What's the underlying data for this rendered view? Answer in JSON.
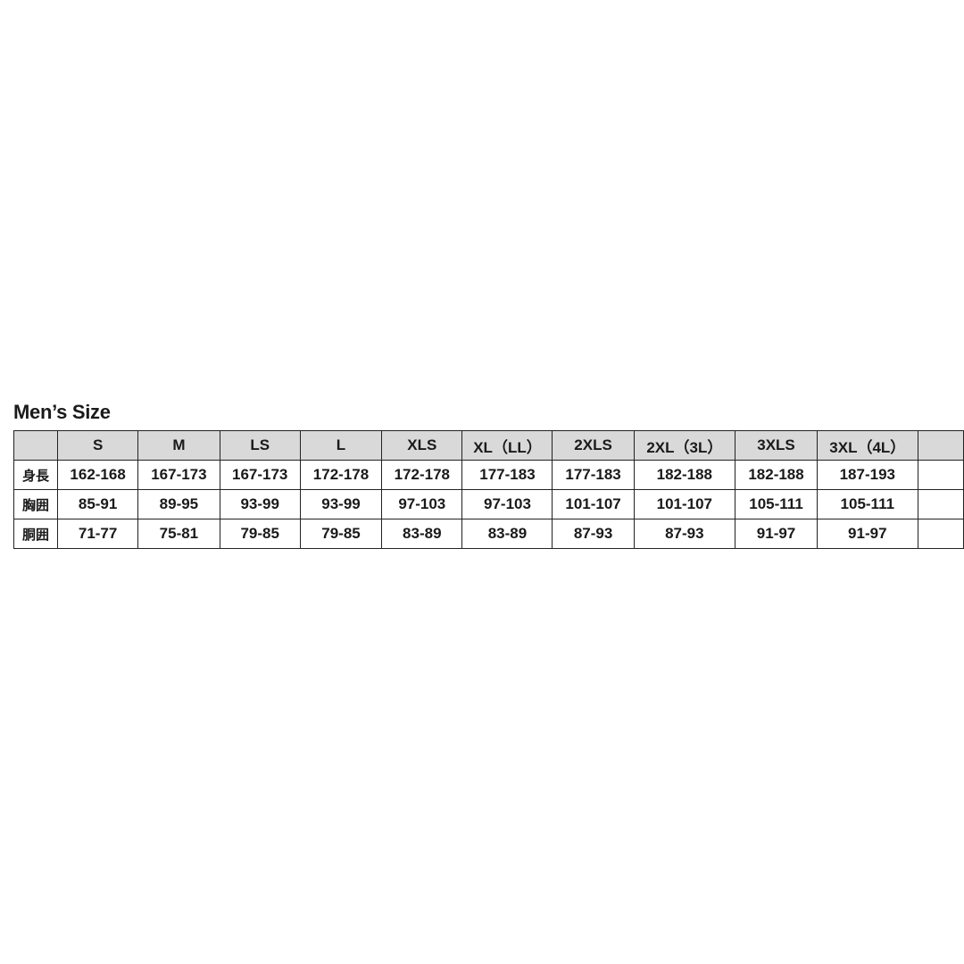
{
  "title": "Men’s Size",
  "table": {
    "headers": [
      "",
      "S",
      "M",
      "LS",
      "L",
      "XLS",
      "XL（LL）",
      "2XLS",
      "2XL（3L）",
      "3XLS",
      "3XL（4L）"
    ],
    "rows": [
      {
        "label": "身長",
        "cells": [
          "162-168",
          "167-173",
          "167-173",
          "172-178",
          "172-178",
          "177-183",
          "177-183",
          "182-188",
          "182-188",
          "187-193"
        ]
      },
      {
        "label": "胸囲",
        "cells": [
          "85-91",
          "89-95",
          "93-99",
          "93-99",
          "97-103",
          "97-103",
          "101-107",
          "101-107",
          "105-111",
          "105-111"
        ]
      },
      {
        "label": "胴囲",
        "cells": [
          "71-77",
          "75-81",
          "79-85",
          "79-85",
          "83-89",
          "83-89",
          "87-93",
          "87-93",
          "91-97",
          "91-97"
        ]
      }
    ]
  },
  "colors": {
    "header_bg": "#d9d9d9",
    "border": "#222222"
  }
}
